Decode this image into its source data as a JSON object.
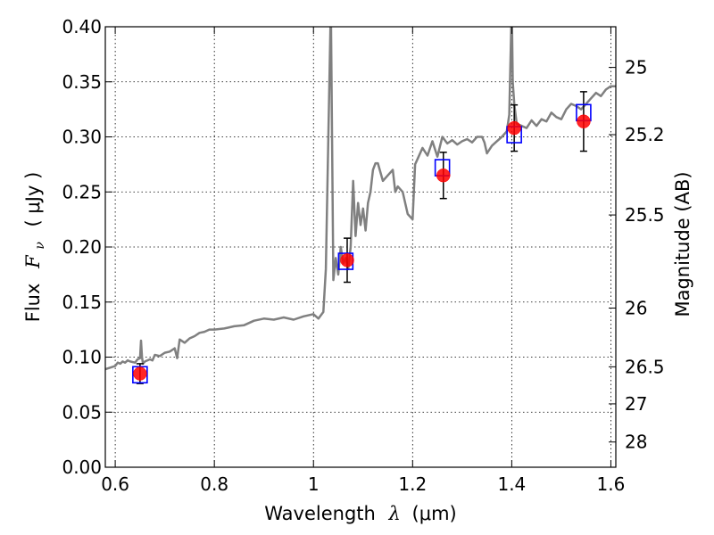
{
  "chart_data": {
    "type": "scatter",
    "title": "",
    "xlabel": "Wavelength  λ (μm)",
    "ylabel": "Flux  F_ν  ( μJy )",
    "ylabel_parts": {
      "prefix": "Flux",
      "symbol": "F",
      "subscript": "ν",
      "unit": "( μJy )"
    },
    "xlabel_parts": {
      "prefix": "Wavelength",
      "symbol": "λ",
      "unit": "(μm)"
    },
    "y2label": "Magnitude (AB)",
    "xlim": [
      0.58,
      1.61
    ],
    "ylim": [
      0.0,
      0.4
    ],
    "grid": true,
    "x_ticks": [
      {
        "value": 0.6,
        "label": "0.6"
      },
      {
        "value": 0.8,
        "label": "0.8"
      },
      {
        "value": 1.0,
        "label": "1"
      },
      {
        "value": 1.2,
        "label": "1.2"
      },
      {
        "value": 1.4,
        "label": "1.4"
      },
      {
        "value": 1.6,
        "label": "1.6"
      }
    ],
    "y_ticks": [
      {
        "value": 0.0,
        "label": "0.00"
      },
      {
        "value": 0.05,
        "label": "0.05"
      },
      {
        "value": 0.1,
        "label": "0.10"
      },
      {
        "value": 0.15,
        "label": "0.15"
      },
      {
        "value": 0.2,
        "label": "0.20"
      },
      {
        "value": 0.25,
        "label": "0.25"
      },
      {
        "value": 0.3,
        "label": "0.30"
      },
      {
        "value": 0.35,
        "label": "0.35"
      },
      {
        "value": 0.4,
        "label": "0.40"
      }
    ],
    "mag_ticks": [
      {
        "value": 25,
        "label": "25"
      },
      {
        "value": 25.2,
        "label": "25.2"
      },
      {
        "value": 25.5,
        "label": "25.5"
      },
      {
        "value": 26,
        "label": "26"
      },
      {
        "value": 26.5,
        "label": "26.5"
      },
      {
        "value": 27,
        "label": "27"
      },
      {
        "value": 28,
        "label": "28"
      }
    ],
    "colors": {
      "model": "#808080",
      "observed": "#ff0000",
      "model_band": "#0000ff",
      "errorbar": "#000000",
      "grid": "#000000"
    },
    "model_spectrum": {
      "name": "",
      "x": [
        0.58,
        0.6,
        0.605,
        0.61,
        0.615,
        0.62,
        0.625,
        0.63,
        0.64,
        0.645,
        0.65,
        0.652,
        0.654,
        0.656,
        0.66,
        0.67,
        0.675,
        0.68,
        0.69,
        0.7,
        0.71,
        0.72,
        0.725,
        0.73,
        0.74,
        0.75,
        0.76,
        0.77,
        0.78,
        0.79,
        0.8,
        0.82,
        0.84,
        0.86,
        0.88,
        0.9,
        0.92,
        0.94,
        0.96,
        0.98,
        1.0,
        1.01,
        1.02,
        1.025,
        1.03,
        1.035,
        1.04,
        1.045,
        1.05,
        1.055,
        1.06,
        1.065,
        1.07,
        1.075,
        1.08,
        1.085,
        1.09,
        1.095,
        1.1,
        1.105,
        1.11,
        1.115,
        1.12,
        1.125,
        1.13,
        1.14,
        1.15,
        1.16,
        1.165,
        1.17,
        1.18,
        1.19,
        1.2,
        1.205,
        1.21,
        1.22,
        1.23,
        1.24,
        1.25,
        1.26,
        1.27,
        1.28,
        1.29,
        1.3,
        1.31,
        1.32,
        1.33,
        1.34,
        1.345,
        1.35,
        1.36,
        1.37,
        1.38,
        1.39,
        1.395,
        1.4,
        1.402,
        1.405,
        1.41,
        1.42,
        1.43,
        1.44,
        1.45,
        1.46,
        1.47,
        1.48,
        1.49,
        1.5,
        1.51,
        1.52,
        1.53,
        1.54,
        1.55,
        1.56,
        1.57,
        1.58,
        1.59,
        1.6,
        1.61
      ],
      "y": [
        0.089,
        0.092,
        0.095,
        0.094,
        0.096,
        0.095,
        0.097,
        0.096,
        0.095,
        0.098,
        0.099,
        0.115,
        0.1,
        0.094,
        0.096,
        0.098,
        0.097,
        0.102,
        0.101,
        0.104,
        0.105,
        0.108,
        0.099,
        0.116,
        0.113,
        0.117,
        0.119,
        0.122,
        0.123,
        0.125,
        0.125,
        0.126,
        0.128,
        0.129,
        0.133,
        0.135,
        0.134,
        0.136,
        0.134,
        0.137,
        0.139,
        0.135,
        0.141,
        0.18,
        0.3,
        0.42,
        0.17,
        0.19,
        0.175,
        0.2,
        0.185,
        0.19,
        0.18,
        0.2,
        0.26,
        0.21,
        0.24,
        0.22,
        0.235,
        0.215,
        0.24,
        0.25,
        0.27,
        0.276,
        0.276,
        0.26,
        0.265,
        0.27,
        0.25,
        0.255,
        0.25,
        0.23,
        0.225,
        0.275,
        0.28,
        0.29,
        0.283,
        0.296,
        0.282,
        0.3,
        0.294,
        0.297,
        0.293,
        0.296,
        0.298,
        0.295,
        0.3,
        0.3,
        0.295,
        0.285,
        0.292,
        0.296,
        0.3,
        0.305,
        0.32,
        0.42,
        0.35,
        0.33,
        0.312,
        0.31,
        0.308,
        0.315,
        0.31,
        0.316,
        0.314,
        0.322,
        0.318,
        0.316,
        0.325,
        0.33,
        0.328,
        0.325,
        0.33,
        0.335,
        0.34,
        0.337,
        0.343,
        0.346,
        0.346
      ]
    },
    "model_band_points": {
      "name": "",
      "x": [
        0.65,
        1.065,
        1.26,
        1.405,
        1.545
      ],
      "y": [
        0.084,
        0.187,
        0.272,
        0.302,
        0.322
      ]
    },
    "observed_points": {
      "name": "",
      "x": [
        0.65,
        1.068,
        1.262,
        1.405,
        1.545
      ],
      "y": [
        0.085,
        0.188,
        0.265,
        0.308,
        0.314
      ],
      "yerr": [
        0.009,
        0.02,
        0.021,
        0.021,
        0.027
      ]
    }
  }
}
